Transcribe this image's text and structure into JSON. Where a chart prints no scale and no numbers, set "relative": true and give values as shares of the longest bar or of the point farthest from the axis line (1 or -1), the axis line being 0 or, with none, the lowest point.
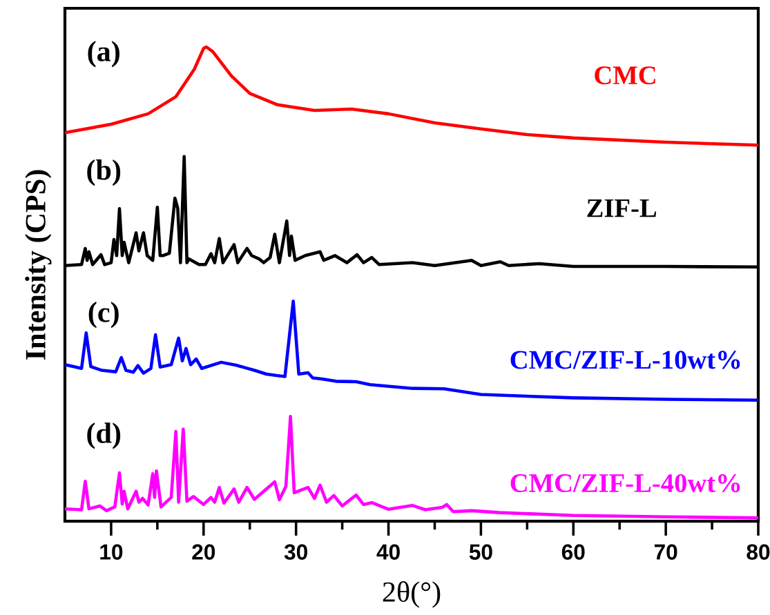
{
  "chart_data": {
    "type": "line",
    "relative": true,
    "xlabel": "2θ(°)",
    "ylabel": "Intensity (CPS)",
    "xlim": [
      5,
      80
    ],
    "xticks": [
      10,
      20,
      30,
      40,
      50,
      60,
      70,
      80
    ],
    "tick_labels": "x",
    "annotations": [
      "(a)",
      "(b)",
      "(c)",
      "(d)"
    ],
    "series": [
      {
        "name": "CMC",
        "color": "#ff0000",
        "x": [
          5,
          10,
          14,
          17,
          19,
          20,
          20.3,
          21,
          23,
          25,
          28,
          32,
          36,
          40,
          45,
          50,
          55,
          60,
          70,
          80
        ],
        "values": [
          0.819,
          0.837,
          0.859,
          0.895,
          0.953,
          0.997,
          1,
          0.99,
          0.939,
          0.902,
          0.878,
          0.866,
          0.869,
          0.859,
          0.84,
          0.827,
          0.815,
          0.808,
          0.799,
          0.793
        ]
      },
      {
        "name": "ZIF-L",
        "color": "#000000",
        "x": [
          5,
          6.8,
          7.2,
          7.4,
          7.6,
          8.0,
          8.9,
          9.3,
          10.0,
          10.3,
          10.6,
          10.9,
          11.2,
          11.4,
          11.9,
          12.7,
          13.0,
          13.5,
          13.9,
          14.5,
          15.0,
          15.3,
          15.6,
          16.3,
          16.9,
          17.2,
          17.5,
          17.9,
          18.2,
          18.4,
          19.5,
          20.2,
          20.8,
          21.2,
          21.7,
          22.1,
          23.3,
          23.7,
          24.7,
          25.2,
          26.0,
          26.5,
          27.2,
          27.7,
          28.2,
          29.0,
          29.3,
          29.5,
          29.9,
          31.0,
          32.6,
          33.0,
          34.2,
          35.5,
          36.6,
          37.3,
          38.2,
          39.0,
          42.6,
          45,
          49,
          50,
          52.1,
          53,
          56.3,
          60,
          70,
          80
        ],
        "values": [
          0.539,
          0.541,
          0.575,
          0.55,
          0.568,
          0.541,
          0.562,
          0.541,
          0.545,
          0.594,
          0.56,
          0.659,
          0.56,
          0.588,
          0.545,
          0.608,
          0.57,
          0.608,
          0.56,
          0.55,
          0.662,
          0.56,
          0.56,
          0.565,
          0.681,
          0.66,
          0.545,
          0.769,
          0.545,
          0.553,
          0.541,
          0.541,
          0.564,
          0.545,
          0.596,
          0.545,
          0.583,
          0.545,
          0.575,
          0.56,
          0.553,
          0.545,
          0.556,
          0.605,
          0.545,
          0.633,
          0.56,
          0.601,
          0.55,
          0.56,
          0.568,
          0.55,
          0.56,
          0.545,
          0.562,
          0.545,
          0.556,
          0.541,
          0.545,
          0.539,
          0.55,
          0.539,
          0.547,
          0.539,
          0.543,
          0.537,
          0.537,
          0.536
        ]
      },
      {
        "name": "CMC/ZIF-L-10wt%",
        "color": "#0000ff",
        "x": [
          5,
          6.8,
          7.3,
          7.8,
          9,
          10.5,
          11.1,
          11.6,
          12.4,
          12.9,
          13.5,
          14.3,
          14.8,
          15.3,
          16.5,
          17.3,
          17.7,
          18.1,
          18.6,
          19.2,
          19.8,
          21.9,
          23.5,
          24.6,
          25.5,
          26.8,
          27.9,
          28.8,
          29.7,
          30.3,
          31.3,
          31.8,
          32.8,
          34.3,
          36.5,
          38,
          42.6,
          46,
          50,
          60,
          70,
          80
        ],
        "values": [
          0.33,
          0.322,
          0.397,
          0.326,
          0.318,
          0.315,
          0.345,
          0.318,
          0.314,
          0.328,
          0.312,
          0.322,
          0.393,
          0.325,
          0.33,
          0.386,
          0.338,
          0.364,
          0.33,
          0.342,
          0.322,
          0.335,
          0.329,
          0.323,
          0.318,
          0.31,
          0.307,
          0.305,
          0.464,
          0.31,
          0.313,
          0.302,
          0.3,
          0.295,
          0.294,
          0.288,
          0.28,
          0.279,
          0.267,
          0.26,
          0.257,
          0.255
        ]
      },
      {
        "name": "CMC/ZIF-L-40wt%",
        "color": "#ff00ff",
        "x": [
          5,
          6.8,
          7.2,
          7.6,
          8.8,
          9.5,
          10.4,
          10.9,
          11.2,
          11.4,
          11.8,
          12.7,
          13.0,
          13.4,
          14.0,
          14.5,
          14.7,
          14.9,
          15.4,
          16.5,
          17.0,
          17.3,
          17.8,
          18.2,
          18.9,
          20,
          20.8,
          21.2,
          21.7,
          22.2,
          23.3,
          23.8,
          24.7,
          25.5,
          27.7,
          28.2,
          28.9,
          29.4,
          29.8,
          31.3,
          32.0,
          32.6,
          33.3,
          34.1,
          35,
          36.5,
          37.3,
          38.2,
          40,
          42.6,
          44,
          45.8,
          46.3,
          47,
          49,
          52,
          60,
          70,
          80
        ],
        "values": [
          0.026,
          0.024,
          0.084,
          0.026,
          0.032,
          0.022,
          0.03,
          0.102,
          0.036,
          0.063,
          0.026,
          0.063,
          0.04,
          0.048,
          0.034,
          0.1,
          0.05,
          0.106,
          0.03,
          0.05,
          0.189,
          0.04,
          0.194,
          0.042,
          0.052,
          0.035,
          0.05,
          0.04,
          0.071,
          0.038,
          0.068,
          0.04,
          0.071,
          0.046,
          0.083,
          0.045,
          0.073,
          0.221,
          0.06,
          0.071,
          0.048,
          0.076,
          0.04,
          0.054,
          0.032,
          0.055,
          0.035,
          0.039,
          0.025,
          0.033,
          0.024,
          0.029,
          0.035,
          0.02,
          0.022,
          0.018,
          0.012,
          0.009,
          0.007
        ]
      }
    ]
  }
}
